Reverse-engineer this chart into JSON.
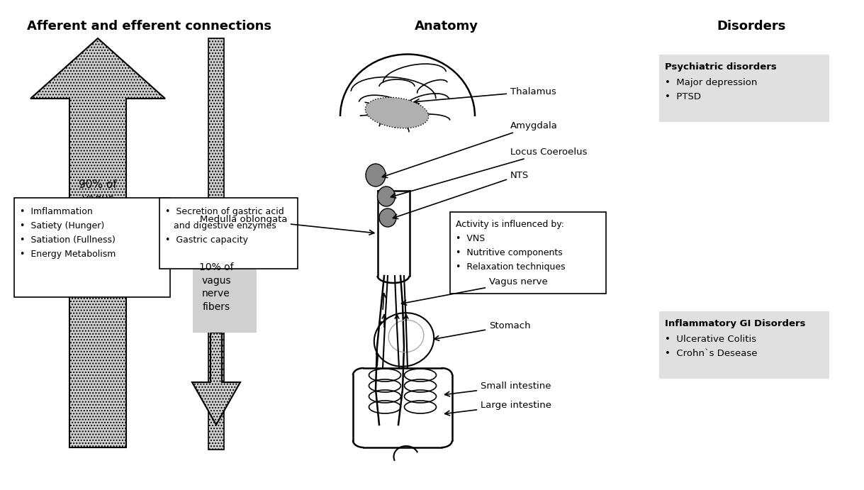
{
  "title_left": "Afferent and efferent connections",
  "title_center": "Anatomy",
  "title_right": "Disorders",
  "arrow_up_label": "90% of\nvagus\nnerve\nfibers",
  "arrow_down_label": "10% of\nvagus\nnerve\nfibers",
  "left_box_items": [
    "Imflammation",
    "Satiety (Hunger)",
    "Satiation (Fullness)",
    "Energy Metabolism"
  ],
  "right_box_items_line1": "Secretion of gastric acid",
  "right_box_items_line2": "and digestive enzymes",
  "right_box_items_line3": "Gastric capacity",
  "psych_title": "Psychiatric disorders",
  "psych_items": [
    "Major depression",
    "PTSD"
  ],
  "gi_title": "Inflammatory GI Disorders",
  "gi_items": [
    "Ulcerative Colitis",
    "Crohn`s Desease"
  ],
  "activity_box_title": "Activity is influenced by:",
  "activity_box_items": [
    "VNS",
    "Nutritive components",
    "Relaxation techniques"
  ],
  "bg_color": "#ffffff",
  "fig_w": 11.99,
  "fig_h": 6.72,
  "dpi": 100
}
